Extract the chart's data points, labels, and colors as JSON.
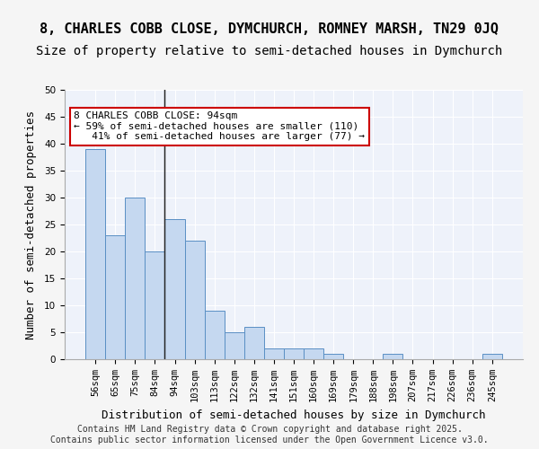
{
  "title1": "8, CHARLES COBB CLOSE, DYMCHURCH, ROMNEY MARSH, TN29 0JQ",
  "title2": "Size of property relative to semi-detached houses in Dymchurch",
  "xlabel": "Distribution of semi-detached houses by size in Dymchurch",
  "ylabel": "Number of semi-detached properties",
  "categories": [
    "56sqm",
    "65sqm",
    "75sqm",
    "84sqm",
    "94sqm",
    "103sqm",
    "113sqm",
    "122sqm",
    "132sqm",
    "141sqm",
    "151sqm",
    "160sqm",
    "169sqm",
    "179sqm",
    "188sqm",
    "198sqm",
    "207sqm",
    "217sqm",
    "226sqm",
    "236sqm",
    "245sqm"
  ],
  "values": [
    39,
    23,
    30,
    20,
    26,
    22,
    9,
    5,
    6,
    2,
    2,
    2,
    1,
    0,
    0,
    1,
    0,
    0,
    0,
    0,
    1
  ],
  "highlight_index": 4,
  "bar_color_normal": "#c5d8f0",
  "bar_color_highlight": "#c5d8f0",
  "bar_edge_color": "#5a8fc4",
  "vline_x": 4,
  "annotation_text": "8 CHARLES COBB CLOSE: 94sqm\n← 59% of semi-detached houses are smaller (110)\n   41% of semi-detached houses are larger (77) →",
  "annotation_box_color": "#ffffff",
  "annotation_box_edge": "#cc0000",
  "ylim": [
    0,
    50
  ],
  "yticks": [
    0,
    5,
    10,
    15,
    20,
    25,
    30,
    35,
    40,
    45,
    50
  ],
  "footnote": "Contains HM Land Registry data © Crown copyright and database right 2025.\nContains public sector information licensed under the Open Government Licence v3.0.",
  "bg_color": "#eef2fa",
  "grid_color": "#ffffff",
  "title1_fontsize": 11,
  "title2_fontsize": 10,
  "xlabel_fontsize": 9,
  "ylabel_fontsize": 9,
  "tick_fontsize": 7.5,
  "annotation_fontsize": 8,
  "footnote_fontsize": 7
}
